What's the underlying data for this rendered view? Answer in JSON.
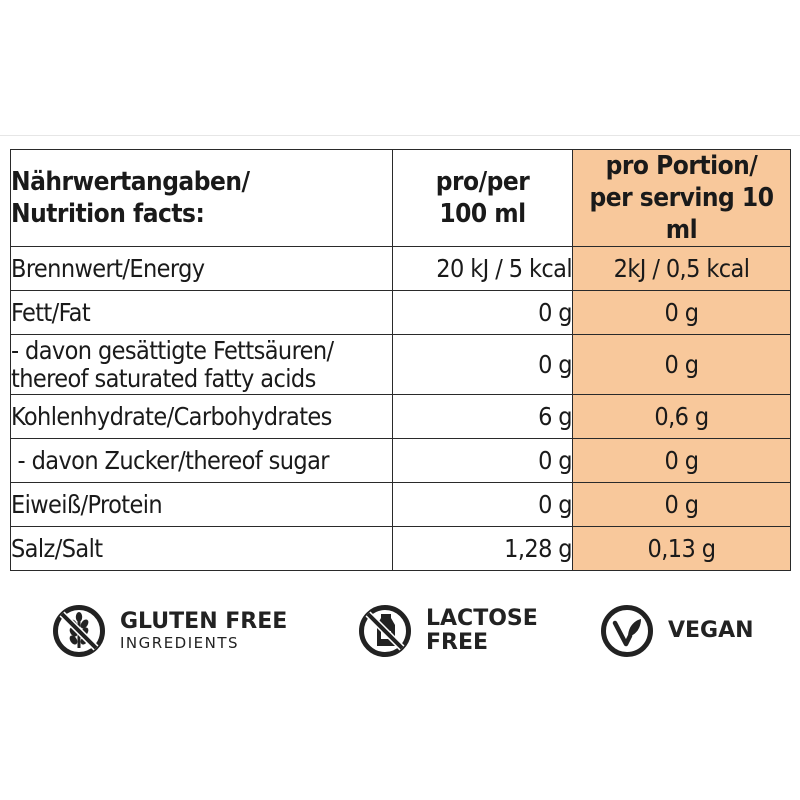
{
  "table": {
    "header": {
      "label_de": "Nährwertangaben/",
      "label_en": "Nutrition facts:",
      "per_100_line1": "pro/per",
      "per_100_line2": "100 ml",
      "serving_line1": "pro Portion/",
      "serving_line2": "per serving 10 ml"
    },
    "rows": [
      {
        "name": "Brennwert/Energy",
        "per_100": "20 kJ / 5 kcal",
        "per_serving": "2kJ / 0,5 kcal"
      },
      {
        "name": "Fett/Fat",
        "per_100": "0 g",
        "per_serving": "0 g"
      },
      {
        "name_line1": "- davon gesättigte Fettsäuren/",
        "name_line2": "thereof saturated fatty acids",
        "per_100": "0 g",
        "per_serving": "0 g"
      },
      {
        "name": "Kohlenhydrate/Carbohydrates",
        "per_100": "6 g",
        "per_serving": "0,6 g"
      },
      {
        "name": " - davon Zucker/thereof sugar",
        "per_100": "0 g",
        "per_serving": "0 g"
      },
      {
        "name": "Eiweiß/Protein",
        "per_100": "0 g",
        "per_serving": "0 g"
      },
      {
        "name": "Salz/Salt",
        "per_100": "1,28 g",
        "per_serving": "0,13 g"
      }
    ]
  },
  "badges": {
    "gluten": {
      "title": "GLUTEN FREE",
      "subtitle": "INGREDIENTS",
      "icon": "wheat-crossed-icon"
    },
    "lactose": {
      "title_line1": "LACTOSE",
      "title_line2": "FREE",
      "icon": "milk-carton-crossed-icon"
    },
    "vegan": {
      "title": "VEGAN",
      "icon": "vegan-v-leaf-icon"
    }
  },
  "colors": {
    "highlight": "#f8c89b",
    "border": "#2a2a2a"
  }
}
